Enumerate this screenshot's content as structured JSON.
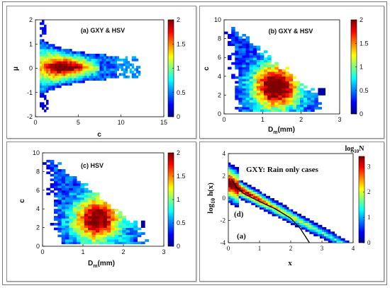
{
  "chart_data": [
    {
      "type": "heatmap",
      "title": "(a) GXY & HSV",
      "xlabel": "c",
      "ylabel": "μ",
      "xlim": [
        0,
        15
      ],
      "ylim": [
        -2,
        2
      ],
      "xticks": [
        "0",
        "5",
        "10",
        "15"
      ],
      "yticks": [
        "-2",
        "-1",
        "0",
        "1",
        "2"
      ],
      "colorbar": {
        "ticks": [
          "0",
          "0.5",
          "1",
          "1.5",
          "2"
        ],
        "range": [
          0,
          2
        ]
      }
    },
    {
      "type": "heatmap",
      "title": "(b) GXY & HSV",
      "xlabel_main": "D",
      "xlabel_sub": "m",
      "xlabel_unit": "(mm)",
      "ylabel": "c",
      "xlim": [
        0,
        3
      ],
      "ylim": [
        0,
        10
      ],
      "xticks": [
        "0",
        "1",
        "2",
        "3"
      ],
      "yticks": [
        "0",
        "2",
        "4",
        "6",
        "8",
        "10"
      ],
      "colorbar": {
        "ticks": [
          "0",
          "0.5",
          "1",
          "1.5",
          "2"
        ],
        "range": [
          0,
          2
        ]
      }
    },
    {
      "type": "heatmap",
      "title": "(c) HSV",
      "xlabel_main": "D",
      "xlabel_sub": "m",
      "xlabel_unit": "(mm)",
      "ylabel": "c",
      "xlim": [
        0,
        3
      ],
      "ylim": [
        0,
        10
      ],
      "xticks": [
        "0",
        "1",
        "2",
        "3"
      ],
      "yticks": [
        "0",
        "2",
        "4",
        "6",
        "8",
        "10"
      ],
      "colorbar": {
        "ticks": [
          "0",
          "0.5",
          "1",
          "1.5",
          "2"
        ],
        "range": [
          0,
          2
        ]
      }
    },
    {
      "type": "heatmap",
      "title": "GXY: Rain only cases",
      "label_d": "(d)",
      "label_a": "(a)",
      "xlabel": "x",
      "ylabel_main": "log",
      "ylabel_sub": "10",
      "ylabel_rest": " h(x)",
      "xlim": [
        0,
        4
      ],
      "ylim": [
        -4,
        4
      ],
      "xticks": [
        "0",
        "1",
        "2",
        "3",
        "4"
      ],
      "yticks": [
        "-4",
        "-2",
        "0",
        "2",
        "4"
      ],
      "colorbar": {
        "title_main": "log",
        "title_sub": "10",
        "title_rest": "N",
        "ticks": [
          "0",
          "1",
          "2",
          "3"
        ],
        "range": [
          0,
          3.4
        ]
      },
      "fit_curve_points": [
        [
          0.1,
          1.7
        ],
        [
          0.25,
          1.0
        ],
        [
          0.5,
          0.4
        ],
        [
          1.0,
          -0.3
        ],
        [
          1.5,
          -0.95
        ],
        [
          2.0,
          -1.8
        ],
        [
          2.3,
          -2.7
        ],
        [
          2.6,
          -4.0
        ]
      ]
    }
  ]
}
